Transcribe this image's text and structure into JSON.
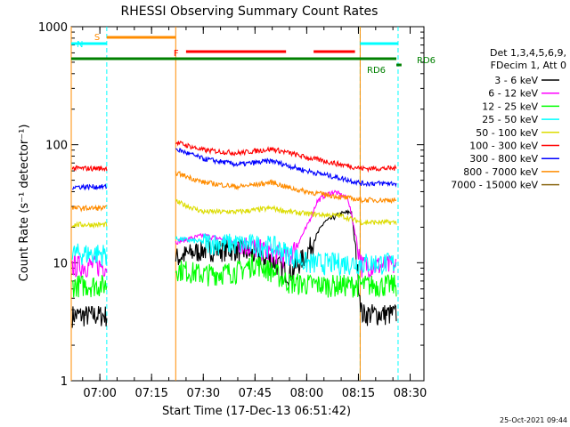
{
  "chart_data": {
    "type": "line",
    "title": "RHESSI Observing Summary Count Rates",
    "xlabel": "Start Time (17-Dec-13 06:51:42)",
    "ylabel": "Count Rate (s⁻¹ detector⁻¹)",
    "yscale": "log",
    "xlim": [
      "06:51:42",
      "08:34:00"
    ],
    "ylim": [
      1,
      1000
    ],
    "x_ticks": [
      "07:00",
      "07:15",
      "07:30",
      "07:45",
      "08:00",
      "08:15",
      "08:30"
    ],
    "y_ticks": [
      "1",
      "10",
      "100",
      "1000"
    ],
    "legend_header": [
      "Det 1,3,4,5,6,9,",
      "FDecim 1, Att 0"
    ],
    "legend_placement": "right",
    "timestamp": "25-Oct-2021 09:44",
    "segments": [
      {
        "start": "06:51:42",
        "end": "07:02:00",
        "state": "daylight"
      },
      {
        "start": "07:22:00",
        "end": "08:15:30",
        "state": "daylight"
      },
      {
        "start": "08:15:30",
        "end": "08:26:30",
        "state": "daylight"
      }
    ],
    "series": [
      {
        "name": "3 - 6 keV",
        "color": "#000000",
        "points": [
          [
            "06:52",
            3.6
          ],
          [
            "07:02",
            3.6
          ],
          [
            "07:22",
            11
          ],
          [
            "07:30",
            13
          ],
          [
            "07:40",
            13
          ],
          [
            "07:50",
            10.5
          ],
          [
            "07:55",
            8
          ],
          [
            "08:00",
            12
          ],
          [
            "08:05",
            22
          ],
          [
            "08:10",
            26
          ],
          [
            "08:13",
            27
          ],
          [
            "08:16",
            3.7
          ],
          [
            "08:26",
            3.7
          ]
        ]
      },
      {
        "name": "6 - 12 keV",
        "color": "#ff00ff",
        "points": [
          [
            "06:52",
            9.5
          ],
          [
            "07:02",
            9.5
          ],
          [
            "07:22",
            15
          ],
          [
            "07:30",
            17
          ],
          [
            "07:40",
            15
          ],
          [
            "07:50",
            12
          ],
          [
            "07:55",
            11
          ],
          [
            "08:00",
            20
          ],
          [
            "08:03",
            33
          ],
          [
            "08:05",
            37
          ],
          [
            "08:08",
            40
          ],
          [
            "08:12",
            35
          ],
          [
            "08:16",
            9.5
          ],
          [
            "08:26",
            9.5
          ]
        ]
      },
      {
        "name": "12 - 25 keV",
        "color": "#00ff00",
        "points": [
          [
            "06:52",
            6.5
          ],
          [
            "07:02",
            6.5
          ],
          [
            "07:22",
            9
          ],
          [
            "07:30",
            8
          ],
          [
            "07:40",
            8.5
          ],
          [
            "07:45",
            10
          ],
          [
            "07:50",
            8.5
          ],
          [
            "07:55",
            6.8
          ],
          [
            "08:05",
            6.5
          ],
          [
            "08:16",
            6.5
          ],
          [
            "08:26",
            6.5
          ]
        ]
      },
      {
        "name": "25 - 50 keV",
        "color": "#00ffff",
        "points": [
          [
            "06:52",
            12
          ],
          [
            "07:02",
            12
          ],
          [
            "07:22",
            16
          ],
          [
            "07:30",
            15
          ],
          [
            "07:40",
            14.5
          ],
          [
            "07:50",
            14
          ],
          [
            "07:55",
            12
          ],
          [
            "08:00",
            10
          ],
          [
            "08:05",
            10
          ],
          [
            "08:16",
            10
          ],
          [
            "08:26",
            10
          ]
        ]
      },
      {
        "name": "50 - 100 keV",
        "color": "#dcdc00",
        "points": [
          [
            "06:52",
            21
          ],
          [
            "07:02",
            21
          ],
          [
            "07:22",
            33
          ],
          [
            "07:30",
            27
          ],
          [
            "07:40",
            27
          ],
          [
            "07:50",
            29
          ],
          [
            "07:55",
            27
          ],
          [
            "08:00",
            26
          ],
          [
            "08:10",
            25
          ],
          [
            "08:16",
            22
          ],
          [
            "08:26",
            22
          ]
        ]
      },
      {
        "name": "100 - 300 keV",
        "color": "#ff0000",
        "points": [
          [
            "06:52",
            63
          ],
          [
            "07:02",
            63
          ],
          [
            "07:22",
            105
          ],
          [
            "07:30",
            90
          ],
          [
            "07:40",
            85
          ],
          [
            "07:50",
            92
          ],
          [
            "07:55",
            85
          ],
          [
            "08:00",
            78
          ],
          [
            "08:10",
            68
          ],
          [
            "08:16",
            63
          ],
          [
            "08:26",
            63
          ]
        ]
      },
      {
        "name": "300 - 800 keV",
        "color": "#0000ff",
        "points": [
          [
            "06:52",
            44
          ],
          [
            "07:02",
            44
          ],
          [
            "07:22",
            92
          ],
          [
            "07:30",
            76
          ],
          [
            "07:40",
            68
          ],
          [
            "07:50",
            73
          ],
          [
            "07:55",
            66
          ],
          [
            "08:00",
            60
          ],
          [
            "08:10",
            52
          ],
          [
            "08:16",
            47
          ],
          [
            "08:26",
            47
          ]
        ]
      },
      {
        "name": "800 - 7000 keV",
        "color": "#ff8c00",
        "points": [
          [
            "06:52",
            29
          ],
          [
            "07:02",
            29
          ],
          [
            "07:22",
            58
          ],
          [
            "07:30",
            48
          ],
          [
            "07:40",
            44
          ],
          [
            "07:50",
            48
          ],
          [
            "07:55",
            43
          ],
          [
            "08:00",
            40
          ],
          [
            "08:10",
            36
          ],
          [
            "08:16",
            34
          ],
          [
            "08:26",
            34
          ]
        ]
      },
      {
        "name": "7000 - 15000 keV",
        "color": "#8b6914",
        "points": []
      }
    ],
    "flags": [
      {
        "label": "S",
        "color": "#ff8c00",
        "start": "07:02:00",
        "end": "07:22:00",
        "level": 1
      },
      {
        "label": "N",
        "color": "#00ffff",
        "start": "06:51:42",
        "end": "07:02:00",
        "level": 2
      },
      {
        "label": "N",
        "color": "#00ffff",
        "start": "08:15:30",
        "end": "08:26:30",
        "level": 2
      },
      {
        "label": "F",
        "color": "#ff0000",
        "start": "07:25:00",
        "end": "07:54:00",
        "level": 3
      },
      {
        "label": "F",
        "color": "#ff0000",
        "start": "08:02:00",
        "end": "08:14:00",
        "level": 3
      },
      {
        "label": "RD6",
        "color": "#008000",
        "start": "06:51:42",
        "end": "08:26:00",
        "level": 4
      },
      {
        "label": "RD6",
        "color": "#008000",
        "start": "08:26:00",
        "end": "08:27:30",
        "level": 5
      }
    ]
  }
}
